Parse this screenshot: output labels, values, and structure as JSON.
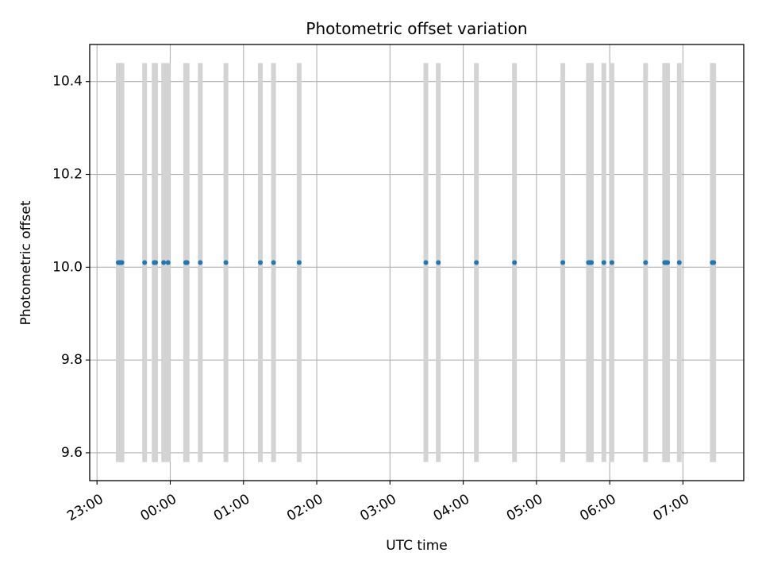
{
  "chart_data": {
    "type": "scatter",
    "title": "Photometric offset variation",
    "xlabel": "UTC time",
    "ylabel": "Photometric offset",
    "x_ticks": [
      "23:00",
      "00:00",
      "01:00",
      "02:00",
      "03:00",
      "04:00",
      "05:00",
      "06:00",
      "07:00"
    ],
    "x_tick_hours": [
      -1,
      0,
      1,
      2,
      3,
      4,
      5,
      6,
      7
    ],
    "xlim_hours": [
      -1.1,
      7.83
    ],
    "y_ticks": [
      9.6,
      9.8,
      10.0,
      10.2,
      10.4
    ],
    "y_tick_labels": [
      "9.6",
      "9.8",
      "10.0",
      "10.2",
      "10.4"
    ],
    "ylim": [
      9.54,
      10.48
    ],
    "grid": true,
    "point_color": "#1f77b4",
    "errorbar_color": "#d3d3d3",
    "errorbar_range": [
      9.58,
      10.44
    ],
    "points": [
      {
        "x": -0.71,
        "y": 10.01
      },
      {
        "x": -0.69,
        "y": 10.01
      },
      {
        "x": -0.67,
        "y": 10.01
      },
      {
        "x": -0.66,
        "y": 10.01
      },
      {
        "x": -0.35,
        "y": 10.01
      },
      {
        "x": -0.22,
        "y": 10.01
      },
      {
        "x": -0.2,
        "y": 10.01
      },
      {
        "x": -0.09,
        "y": 10.01
      },
      {
        "x": -0.03,
        "y": 10.01
      },
      {
        "x": 0.21,
        "y": 10.01
      },
      {
        "x": 0.23,
        "y": 10.01
      },
      {
        "x": 0.41,
        "y": 10.01
      },
      {
        "x": 0.76,
        "y": 10.01
      },
      {
        "x": 1.23,
        "y": 10.01
      },
      {
        "x": 1.41,
        "y": 10.01
      },
      {
        "x": 1.76,
        "y": 10.01
      },
      {
        "x": 3.49,
        "y": 10.01
      },
      {
        "x": 3.66,
        "y": 10.01
      },
      {
        "x": 4.18,
        "y": 10.01
      },
      {
        "x": 4.7,
        "y": 10.01
      },
      {
        "x": 5.36,
        "y": 10.01
      },
      {
        "x": 5.71,
        "y": 10.01
      },
      {
        "x": 5.73,
        "y": 10.01
      },
      {
        "x": 5.75,
        "y": 10.01
      },
      {
        "x": 5.92,
        "y": 10.01
      },
      {
        "x": 6.03,
        "y": 10.01
      },
      {
        "x": 6.49,
        "y": 10.01
      },
      {
        "x": 6.75,
        "y": 10.01
      },
      {
        "x": 6.77,
        "y": 10.01
      },
      {
        "x": 6.79,
        "y": 10.01
      },
      {
        "x": 6.95,
        "y": 10.01
      },
      {
        "x": 7.4,
        "y": 10.01
      },
      {
        "x": 7.42,
        "y": 10.01
      }
    ]
  }
}
